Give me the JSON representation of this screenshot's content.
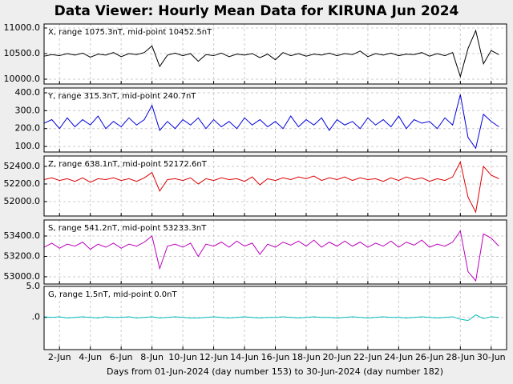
{
  "title": "Data Viewer:  Hourly Mean Data for KIRUNA Jun 2024",
  "xlabel": "Days from 01-Jun-2024 (day number 153) to 30-Jun-2024 (day number 182)",
  "xlim": [
    1,
    31
  ],
  "xticks": [
    {
      "value": 2,
      "label": "2-Jun"
    },
    {
      "value": 4,
      "label": "4-Jun"
    },
    {
      "value": 6,
      "label": "6-Jun"
    },
    {
      "value": 8,
      "label": "8-Jun"
    },
    {
      "value": 10,
      "label": "10-Jun"
    },
    {
      "value": 12,
      "label": "12-Jun"
    },
    {
      "value": 14,
      "label": "14-Jun"
    },
    {
      "value": 16,
      "label": "16-Jun"
    },
    {
      "value": 18,
      "label": "18-Jun"
    },
    {
      "value": 20,
      "label": "20-Jun"
    },
    {
      "value": 22,
      "label": "22-Jun"
    },
    {
      "value": 24,
      "label": "24-Jun"
    },
    {
      "value": 26,
      "label": "26-Jun"
    },
    {
      "value": 28,
      "label": "28-Jun"
    },
    {
      "value": 30,
      "label": "30-Jun"
    }
  ],
  "grid": true,
  "chart_data": [
    {
      "type": "line",
      "label": "X, range 1075.3nT, mid-point 10452.5nT",
      "color": "#000000",
      "x": [
        1,
        1.5,
        2,
        2.5,
        3,
        3.5,
        4,
        4.5,
        5,
        5.5,
        6,
        6.5,
        7,
        7.5,
        8,
        8.5,
        9,
        9.5,
        10,
        10.5,
        11,
        11.5,
        12,
        12.5,
        13,
        13.5,
        14,
        14.5,
        15,
        15.5,
        16,
        16.5,
        17,
        17.5,
        18,
        18.5,
        19,
        19.5,
        20,
        20.5,
        21,
        21.5,
        22,
        22.5,
        23,
        23.5,
        24,
        24.5,
        25,
        25.5,
        26,
        26.5,
        27,
        27.5,
        28,
        28.5,
        29,
        29.5,
        30,
        30.5
      ],
      "values": [
        10450,
        10480,
        10460,
        10500,
        10470,
        10510,
        10430,
        10490,
        10470,
        10520,
        10440,
        10500,
        10480,
        10520,
        10650,
        10250,
        10470,
        10510,
        10460,
        10500,
        10350,
        10480,
        10460,
        10510,
        10440,
        10490,
        10470,
        10500,
        10420,
        10490,
        10380,
        10520,
        10460,
        10500,
        10450,
        10490,
        10470,
        10510,
        10460,
        10500,
        10480,
        10550,
        10440,
        10500,
        10470,
        10510,
        10460,
        10490,
        10480,
        10520,
        10450,
        10500,
        10460,
        10520,
        10050,
        10600,
        10950,
        10300,
        10560,
        10480
      ],
      "ylim": [
        9906,
        11078
      ],
      "yticks": [
        {
          "value": 10000,
          "label": "10000.0"
        },
        {
          "value": 10500,
          "label": "10500.0"
        },
        {
          "value": 11000,
          "label": "11000.0"
        }
      ]
    },
    {
      "type": "line",
      "label": "Y, range 315.3nT, mid-point 240.7nT",
      "color": "#0000dd",
      "x": [
        1,
        1.5,
        2,
        2.5,
        3,
        3.5,
        4,
        4.5,
        5,
        5.5,
        6,
        6.5,
        7,
        7.5,
        8,
        8.5,
        9,
        9.5,
        10,
        10.5,
        11,
        11.5,
        12,
        12.5,
        13,
        13.5,
        14,
        14.5,
        15,
        15.5,
        16,
        16.5,
        17,
        17.5,
        18,
        18.5,
        19,
        19.5,
        20,
        20.5,
        21,
        21.5,
        22,
        22.5,
        23,
        23.5,
        24,
        24.5,
        25,
        25.5,
        26,
        26.5,
        27,
        27.5,
        28,
        28.5,
        29,
        29.5,
        30,
        30.5
      ],
      "values": [
        230,
        250,
        200,
        260,
        210,
        250,
        220,
        270,
        200,
        240,
        210,
        260,
        220,
        250,
        330,
        190,
        240,
        200,
        250,
        220,
        260,
        200,
        250,
        210,
        240,
        200,
        260,
        220,
        250,
        210,
        240,
        200,
        270,
        210,
        250,
        220,
        260,
        190,
        250,
        220,
        240,
        200,
        260,
        220,
        250,
        210,
        270,
        200,
        250,
        230,
        240,
        200,
        260,
        220,
        390,
        150,
        90,
        280,
        240,
        210
      ],
      "ylim": [
        69,
        427
      ],
      "yticks": [
        {
          "value": 100,
          "label": "100.0"
        },
        {
          "value": 200,
          "label": "200.0"
        },
        {
          "value": 300,
          "label": "300.0"
        },
        {
          "value": 400,
          "label": "400.0"
        }
      ]
    },
    {
      "type": "line",
      "label": "Z, range 638.1nT, mid-point 52172.6nT",
      "color": "#dd0000",
      "x": [
        1,
        1.5,
        2,
        2.5,
        3,
        3.5,
        4,
        4.5,
        5,
        5.5,
        6,
        6.5,
        7,
        7.5,
        8,
        8.5,
        9,
        9.5,
        10,
        10.5,
        11,
        11.5,
        12,
        12.5,
        13,
        13.5,
        14,
        14.5,
        15,
        15.5,
        16,
        16.5,
        17,
        17.5,
        18,
        18.5,
        19,
        19.5,
        20,
        20.5,
        21,
        21.5,
        22,
        22.5,
        23,
        23.5,
        24,
        24.5,
        25,
        25.5,
        26,
        26.5,
        27,
        27.5,
        28,
        28.5,
        29,
        29.5,
        30,
        30.5
      ],
      "values": [
        52250,
        52270,
        52240,
        52260,
        52230,
        52270,
        52220,
        52260,
        52250,
        52270,
        52240,
        52260,
        52230,
        52270,
        52330,
        52120,
        52250,
        52260,
        52240,
        52270,
        52200,
        52260,
        52240,
        52270,
        52250,
        52260,
        52230,
        52280,
        52190,
        52260,
        52240,
        52270,
        52250,
        52280,
        52260,
        52290,
        52240,
        52270,
        52250,
        52280,
        52240,
        52270,
        52250,
        52260,
        52230,
        52270,
        52240,
        52280,
        52250,
        52270,
        52230,
        52260,
        52240,
        52280,
        52450,
        52050,
        51880,
        52400,
        52300,
        52260
      ],
      "ylim": [
        51836,
        52518
      ],
      "yticks": [
        {
          "value": 52000,
          "label": "52000.0"
        },
        {
          "value": 52200,
          "label": "52200.0"
        },
        {
          "value": 52400,
          "label": "52400.0"
        }
      ]
    },
    {
      "type": "line",
      "label": "S, range 541.2nT, mid-point 53233.3nT",
      "color": "#bb00bb",
      "x": [
        1,
        1.5,
        2,
        2.5,
        3,
        3.5,
        4,
        4.5,
        5,
        5.5,
        6,
        6.5,
        7,
        7.5,
        8,
        8.5,
        9,
        9.5,
        10,
        10.5,
        11,
        11.5,
        12,
        12.5,
        13,
        13.5,
        14,
        14.5,
        15,
        15.5,
        16,
        16.5,
        17,
        17.5,
        18,
        18.5,
        19,
        19.5,
        20,
        20.5,
        21,
        21.5,
        22,
        22.5,
        23,
        23.5,
        24,
        24.5,
        25,
        25.5,
        26,
        26.5,
        27,
        27.5,
        28,
        28.5,
        29,
        29.5,
        30,
        30.5
      ],
      "values": [
        53290,
        53330,
        53280,
        53320,
        53300,
        53340,
        53270,
        53320,
        53290,
        53330,
        53280,
        53320,
        53300,
        53340,
        53400,
        53080,
        53300,
        53320,
        53290,
        53330,
        53200,
        53320,
        53300,
        53340,
        53290,
        53350,
        53300,
        53330,
        53220,
        53320,
        53290,
        53340,
        53310,
        53350,
        53300,
        53360,
        53290,
        53340,
        53300,
        53350,
        53300,
        53340,
        53290,
        53330,
        53300,
        53350,
        53290,
        53340,
        53310,
        53360,
        53290,
        53320,
        53300,
        53340,
        53450,
        53050,
        52960,
        53420,
        53380,
        53300
      ],
      "ylim": [
        52929,
        53557
      ],
      "yticks": [
        {
          "value": 53000,
          "label": "53000.0"
        },
        {
          "value": 53200,
          "label": "53200.0"
        },
        {
          "value": 53400,
          "label": "53400.0"
        }
      ]
    },
    {
      "type": "line",
      "label": "G, range 1.5nT, mid-point 0.0nT",
      "color": "#00bbbb",
      "x": [
        1,
        1.5,
        2,
        2.5,
        3,
        3.5,
        4,
        4.5,
        5,
        5.5,
        6,
        6.5,
        7,
        7.5,
        8,
        8.5,
        9,
        9.5,
        10,
        10.5,
        11,
        11.5,
        12,
        12.5,
        13,
        13.5,
        14,
        14.5,
        15,
        15.5,
        16,
        16.5,
        17,
        17.5,
        18,
        18.5,
        19,
        19.5,
        20,
        20.5,
        21,
        21.5,
        22,
        22.5,
        23,
        23.5,
        24,
        24.5,
        25,
        25.5,
        26,
        26.5,
        27,
        27.5,
        28,
        28.5,
        29,
        29.5,
        30,
        30.5
      ],
      "values": [
        0.1,
        0.0,
        0.1,
        -0.1,
        0.0,
        0.1,
        0.0,
        -0.1,
        0.1,
        0.0,
        0.0,
        0.1,
        -0.1,
        0.0,
        0.1,
        -0.1,
        0.0,
        0.1,
        0.0,
        -0.1,
        -0.1,
        0.0,
        0.1,
        0.0,
        -0.1,
        0.0,
        0.1,
        0.0,
        -0.1,
        0.0,
        0.0,
        0.1,
        0.0,
        -0.1,
        0.0,
        0.1,
        0.0,
        0.0,
        -0.1,
        0.0,
        0.1,
        0.0,
        -0.1,
        0.0,
        0.1,
        0.0,
        0.0,
        -0.1,
        0.0,
        0.1,
        0.0,
        -0.1,
        0.0,
        0.1,
        -0.3,
        -0.5,
        0.4,
        -0.2,
        0.1,
        0.0
      ],
      "ylim": [
        -5.2,
        5
      ],
      "yticks": [
        {
          "value": 0,
          "label": ".0"
        },
        {
          "value": 5,
          "label": "5.0"
        }
      ]
    }
  ]
}
